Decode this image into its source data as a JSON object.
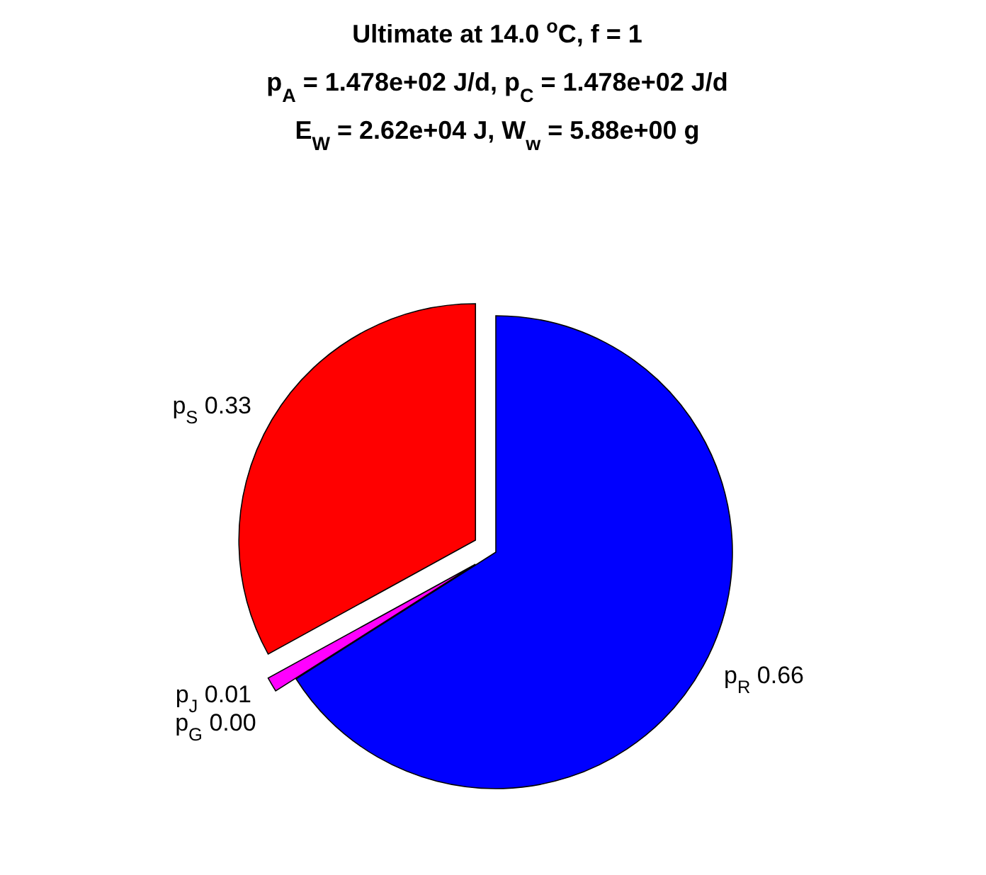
{
  "chart_data": {
    "type": "pie",
    "title": "Ultimate at 14.0 $^{o}$C, f = 1\np$_{A}$ = 1.478e+02 J/d, p$_{C}$ = 1.478e+02 J/d\nE$_{W}$ = 2.62e+04 J, W$_{w}$ = 5.88e+00 g",
    "categories": [
      "p$_{S}$",
      "p$_{J}$",
      "p$_{G}$",
      "p$_{R}$"
    ],
    "values": [
      0.33,
      0.01,
      0.0,
      0.66
    ],
    "value_labels": [
      "0.33",
      "0.01",
      "0.00",
      "0.66"
    ],
    "colors": [
      "#ff0000",
      "#ff00ff",
      "#00ff00",
      "#0000ff"
    ]
  }
}
